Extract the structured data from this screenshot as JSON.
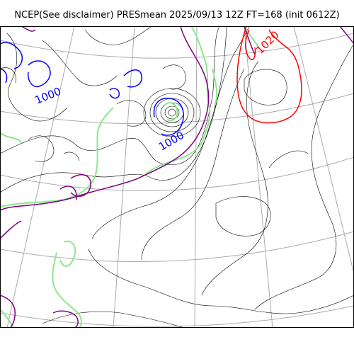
{
  "title": "NCEP(See disclaimer) PRESmean 2025/09/13 12Z FT=168 (init 0612Z)",
  "contour_labels": [
    {
      "value": "1000",
      "color": "#0000ff",
      "region": "west"
    },
    {
      "value": "1000",
      "color": "#0000ff",
      "region": "center-low"
    },
    {
      "value": "1020",
      "color": "#ff0000",
      "region": "east-high"
    }
  ],
  "colors": {
    "isobar": "#000000",
    "graticule": "#aaaaaa",
    "coastline": "#8be88b",
    "low_contour": "#0000ff",
    "high_contour": "#ff0000",
    "purple_contour": "#800080",
    "frame": "#000000"
  }
}
